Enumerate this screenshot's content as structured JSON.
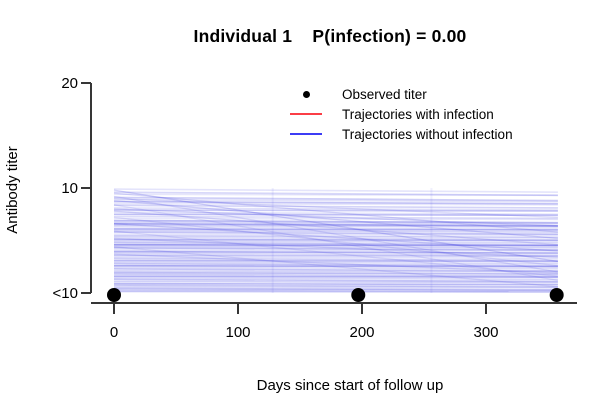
{
  "title": "Individual 1    P(infection) = 0.00",
  "y_axis": {
    "label": "Antibody titer",
    "ticks": [
      "20",
      "10",
      "<10"
    ]
  },
  "x_axis": {
    "label": "Days since start of follow up",
    "ticks": [
      "0",
      "100",
      "200",
      "300"
    ]
  },
  "legend": {
    "items": [
      {
        "marker": "point",
        "color": "#000000",
        "label": "Observed titer"
      },
      {
        "marker": "line",
        "color": "#fb3d46",
        "label": "Trajectories with infection"
      },
      {
        "marker": "line",
        "color": "#3c3cf5",
        "label": "Trajectories without infection"
      }
    ]
  },
  "chart_data": {
    "type": "line",
    "title": "Individual 1    P(infection) = 0.00",
    "xlabel": "Days since start of follow up",
    "ylabel": "Antibody titer",
    "infection_probability": 0.0,
    "x_ticks": [
      0,
      100,
      200,
      300
    ],
    "x_range": [
      0,
      358
    ],
    "y_tick_labels": [
      "<10",
      "10",
      "20"
    ],
    "y_tick_values": [
      0,
      10,
      20
    ],
    "grid": false,
    "legend_position": "top-right-inside",
    "observed_points": {
      "days": [
        0,
        197,
        357
      ],
      "titer_label": "<10",
      "value": 0,
      "color": "#000000"
    },
    "trajectory_color": "#3d3de0",
    "vertical_marks_days": [
      128,
      256
    ],
    "trajectories_with_infection": [],
    "trajectories_without_infection": [
      [
        9.9,
        9.6,
        0.14
      ],
      [
        9.6,
        9.3,
        0.2
      ],
      [
        9.4,
        9.3,
        0.12
      ],
      [
        9.1,
        8.8,
        0.25
      ],
      [
        8.9,
        8.7,
        0.15
      ],
      [
        8.7,
        8.5,
        0.3
      ],
      [
        8.5,
        8.4,
        0.12
      ],
      [
        8.35,
        8.1,
        0.22
      ],
      [
        8.1,
        7.9,
        0.16
      ],
      [
        7.9,
        7.8,
        0.28
      ],
      [
        7.7,
        7.5,
        0.14
      ],
      [
        7.5,
        7.4,
        0.33
      ],
      [
        7.3,
        7.1,
        0.18
      ],
      [
        7.1,
        7.0,
        0.12
      ],
      [
        6.9,
        6.7,
        0.35
      ],
      [
        6.75,
        6.6,
        0.2
      ],
      [
        6.6,
        6.4,
        0.45
      ],
      [
        6.45,
        6.3,
        0.25
      ],
      [
        6.3,
        6.1,
        0.15
      ],
      [
        6.1,
        6.0,
        0.4
      ],
      [
        5.95,
        5.8,
        0.22
      ],
      [
        5.8,
        5.6,
        0.3
      ],
      [
        5.6,
        5.5,
        0.14
      ],
      [
        5.45,
        5.3,
        0.26
      ],
      [
        5.3,
        5.1,
        0.18
      ],
      [
        5.1,
        5.0,
        0.38
      ],
      [
        4.95,
        4.8,
        0.2
      ],
      [
        4.8,
        4.6,
        0.3
      ],
      [
        4.6,
        4.5,
        0.5
      ],
      [
        4.45,
        4.3,
        0.24
      ],
      [
        4.3,
        4.1,
        0.34
      ],
      [
        4.1,
        4.0,
        0.16
      ],
      [
        3.95,
        3.8,
        0.42
      ],
      [
        3.8,
        3.6,
        0.2
      ],
      [
        3.6,
        3.5,
        0.3
      ],
      [
        3.45,
        3.3,
        0.16
      ],
      [
        3.3,
        3.1,
        0.26
      ],
      [
        3.1,
        3.0,
        0.36
      ],
      [
        2.95,
        2.8,
        0.2
      ],
      [
        2.8,
        2.6,
        0.3
      ],
      [
        2.6,
        2.5,
        0.44
      ],
      [
        2.45,
        2.3,
        0.18
      ],
      [
        2.3,
        2.1,
        0.3
      ],
      [
        2.1,
        2.0,
        0.22
      ],
      [
        1.95,
        1.8,
        0.34
      ],
      [
        1.8,
        1.6,
        0.26
      ],
      [
        1.6,
        1.5,
        0.4
      ],
      [
        1.45,
        1.3,
        0.2
      ],
      [
        1.3,
        1.1,
        0.3
      ],
      [
        1.1,
        1.0,
        0.24
      ],
      [
        0.9,
        0.8,
        0.36
      ],
      [
        0.75,
        0.6,
        0.28
      ],
      [
        0.6,
        0.5,
        0.2
      ],
      [
        0.45,
        0.3,
        0.32
      ],
      [
        0.3,
        0.2,
        0.25
      ],
      [
        0.15,
        0.1,
        0.3
      ],
      [
        9.8,
        3.0,
        0.22,
        1.3
      ],
      [
        9.5,
        5.8,
        0.18,
        1.3
      ],
      [
        9.2,
        2.0,
        0.16,
        1.3
      ],
      [
        8.8,
        5.2,
        0.2,
        1.3
      ],
      [
        8.4,
        1.2,
        0.14,
        1.3
      ],
      [
        7.8,
        4.6,
        0.18,
        1.3
      ],
      [
        7.2,
        2.6,
        0.15,
        1.3
      ],
      [
        6.6,
        4.0,
        0.2,
        1.3
      ],
      [
        5.9,
        1.6,
        0.14,
        1.3
      ],
      [
        5.2,
        3.4,
        0.18,
        1.3
      ],
      [
        9.0,
        7.2,
        0.16,
        1.3
      ],
      [
        4.4,
        0.6,
        0.15,
        1.3
      ],
      [
        3.7,
        1.9,
        0.17,
        1.3
      ],
      [
        8.0,
        6.4,
        0.2,
        1.3
      ]
    ]
  }
}
